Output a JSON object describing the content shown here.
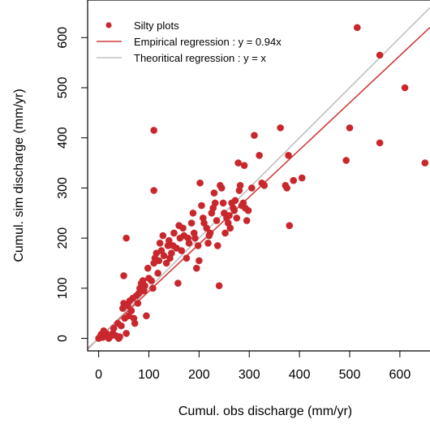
{
  "chart_data": {
    "type": "scatter",
    "xlabel": "Cumul. obs discharge (mm/yr)",
    "ylabel": "Cumul. sim discharge (mm/yr)",
    "xlim": [
      -22,
      660
    ],
    "ylim": [
      -25,
      675
    ],
    "xticks": [
      0,
      100,
      200,
      300,
      400,
      500,
      600
    ],
    "yticks": [
      0,
      100,
      200,
      300,
      400,
      500,
      600
    ],
    "legend_position": "top-left",
    "colors": {
      "points": "#c8282d",
      "empirical": "#d23c3c",
      "theoretical": "#c0c0c0"
    },
    "legend": [
      {
        "label": "Silty plots",
        "kind": "point"
      },
      {
        "label": "Empirical regression : y = 0.94x",
        "kind": "line"
      },
      {
        "label": "Theoritical regression : y = x",
        "kind": "line"
      }
    ],
    "lines": [
      {
        "name": "Empirical regression : y = 0.94x",
        "slope": 0.94,
        "color": "#d23c3c"
      },
      {
        "name": "Theoritical regression : y = x",
        "slope": 1.0,
        "color": "#c0c0c0"
      }
    ],
    "series": [
      {
        "name": "Silty plots",
        "points": [
          [
            0,
            0
          ],
          [
            3,
            3
          ],
          [
            5,
            8
          ],
          [
            8,
            2
          ],
          [
            10,
            15
          ],
          [
            12,
            5
          ],
          [
            15,
            10
          ],
          [
            18,
            3
          ],
          [
            20,
            0
          ],
          [
            25,
            5
          ],
          [
            28,
            10
          ],
          [
            30,
            20
          ],
          [
            35,
            5
          ],
          [
            38,
            30
          ],
          [
            40,
            0
          ],
          [
            42,
            3
          ],
          [
            45,
            25
          ],
          [
            48,
            60
          ],
          [
            50,
            70
          ],
          [
            52,
            40
          ],
          [
            55,
            10
          ],
          [
            58,
            65
          ],
          [
            60,
            45
          ],
          [
            62,
            75
          ],
          [
            65,
            55
          ],
          [
            68,
            80
          ],
          [
            70,
            40
          ],
          [
            72,
            30
          ],
          [
            75,
            85
          ],
          [
            78,
            70
          ],
          [
            80,
            90
          ],
          [
            82,
            100
          ],
          [
            85,
            110
          ],
          [
            88,
            115
          ],
          [
            90,
            95
          ],
          [
            92,
            105
          ],
          [
            95,
            45
          ],
          [
            98,
            140
          ],
          [
            100,
            120
          ],
          [
            105,
            115
          ],
          [
            108,
            100
          ],
          [
            110,
            150
          ],
          [
            112,
            160
          ],
          [
            115,
            170
          ],
          [
            118,
            130
          ],
          [
            120,
            155
          ],
          [
            122,
            190
          ],
          [
            125,
            175
          ],
          [
            128,
            205
          ],
          [
            130,
            165
          ],
          [
            135,
            150
          ],
          [
            138,
            185
          ],
          [
            140,
            195
          ],
          [
            142,
            160
          ],
          [
            145,
            170
          ],
          [
            148,
            185
          ],
          [
            150,
            210
          ],
          [
            155,
            180
          ],
          [
            158,
            110
          ],
          [
            160,
            225
          ],
          [
            162,
            200
          ],
          [
            165,
            175
          ],
          [
            168,
            220
          ],
          [
            170,
            205
          ],
          [
            175,
            160
          ],
          [
            178,
            200
          ],
          [
            180,
            190
          ],
          [
            185,
            230
          ],
          [
            188,
            250
          ],
          [
            190,
            210
          ],
          [
            192,
            200
          ],
          [
            195,
            140
          ],
          [
            198,
            185
          ],
          [
            200,
            155
          ],
          [
            202,
            310
          ],
          [
            205,
            265
          ],
          [
            208,
            240
          ],
          [
            210,
            230
          ],
          [
            215,
            220
          ],
          [
            218,
            190
          ],
          [
            220,
            205
          ],
          [
            222,
            210
          ],
          [
            225,
            250
          ],
          [
            228,
            260
          ],
          [
            230,
            290
          ],
          [
            232,
            270
          ],
          [
            235,
            235
          ],
          [
            237,
            185
          ],
          [
            240,
            105
          ],
          [
            242,
            305
          ],
          [
            245,
            300
          ],
          [
            248,
            270
          ],
          [
            250,
            250
          ],
          [
            252,
            210
          ],
          [
            255,
            240
          ],
          [
            258,
            230
          ],
          [
            260,
            245
          ],
          [
            262,
            220
          ],
          [
            265,
            270
          ],
          [
            268,
            260
          ],
          [
            270,
            255
          ],
          [
            272,
            275
          ],
          [
            275,
            240
          ],
          [
            278,
            350
          ],
          [
            280,
            295
          ],
          [
            282,
            305
          ],
          [
            285,
            265
          ],
          [
            288,
            270
          ],
          [
            290,
            345
          ],
          [
            292,
            260
          ],
          [
            295,
            235
          ],
          [
            298,
            255
          ],
          [
            305,
            300
          ],
          [
            310,
            405
          ],
          [
            320,
            365
          ],
          [
            325,
            310
          ],
          [
            330,
            305
          ],
          [
            362,
            420
          ],
          [
            372,
            305
          ],
          [
            375,
            300
          ],
          [
            378,
            365
          ],
          [
            380,
            225
          ],
          [
            388,
            315
          ],
          [
            405,
            320
          ],
          [
            493,
            355
          ],
          [
            500,
            420
          ],
          [
            515,
            620
          ],
          [
            560,
            390
          ],
          [
            560,
            565
          ],
          [
            610,
            500
          ],
          [
            650,
            350
          ],
          [
            110,
            415
          ],
          [
            110,
            295
          ],
          [
            55,
            200
          ],
          [
            50,
            125
          ]
        ]
      }
    ]
  }
}
